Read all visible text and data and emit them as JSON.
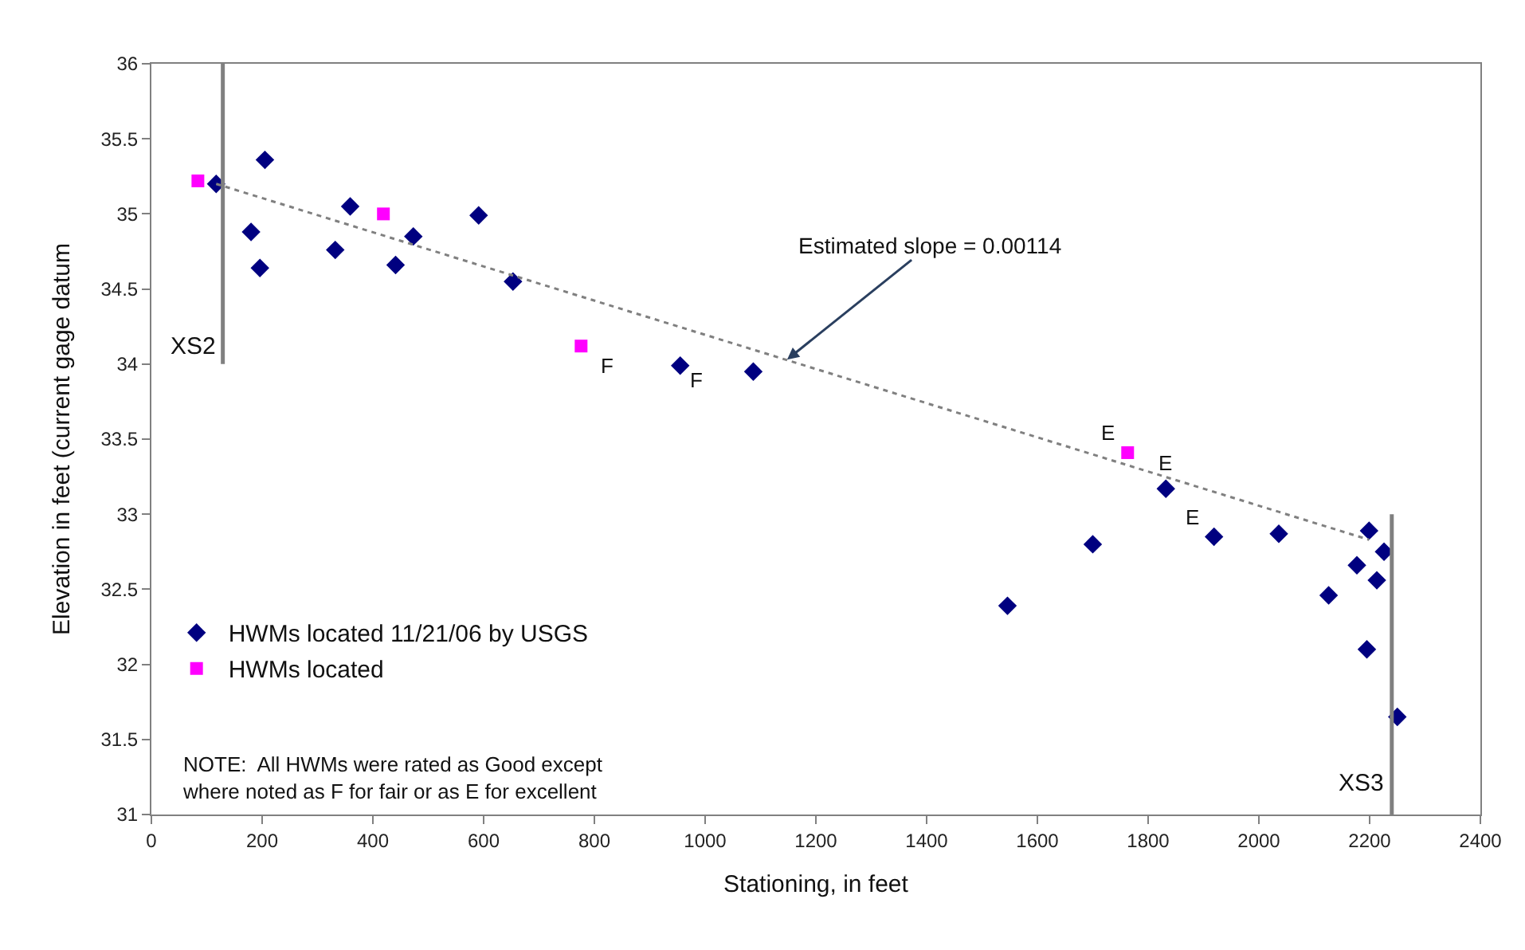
{
  "chart_data": {
    "type": "scatter",
    "xlabel": "Stationing, in feet",
    "ylabel": "Elevation in feet (current gage datum",
    "xlim": [
      0,
      2400
    ],
    "xticks": [
      0,
      200,
      400,
      600,
      800,
      1000,
      1200,
      1400,
      1600,
      1800,
      2000,
      2200,
      2400
    ],
    "ylim": [
      31,
      36
    ],
    "yticks": [
      31,
      31.5,
      32,
      32.5,
      33,
      33.5,
      34,
      34.5,
      35,
      35.5,
      36
    ],
    "legend": "bottom left",
    "series": [
      {
        "name": "HWMs located 11/21/06 by USGS",
        "color": "#000080",
        "marker": "diamond",
        "x": [
          117,
          205,
          180,
          196,
          332,
          359,
          441,
          473,
          591,
          653,
          955,
          1087,
          1546,
          1700,
          1832,
          1919,
          2036,
          2126,
          2177,
          2199,
          2213,
          2226,
          2195,
          2250
        ],
        "values": [
          35.2,
          35.36,
          34.88,
          34.64,
          34.76,
          35.05,
          34.66,
          34.85,
          34.99,
          34.55,
          33.99,
          33.95,
          32.39,
          32.8,
          33.17,
          32.85,
          32.87,
          32.46,
          32.66,
          32.89,
          32.56,
          32.75,
          32.1,
          31.65
        ]
      },
      {
        "name": "HWMs located",
        "color": "#ff00ff",
        "marker": "square",
        "x": [
          84,
          419,
          776,
          1763
        ],
        "values": [
          35.22,
          35.0,
          34.12,
          33.41
        ]
      },
      {
        "type": "line",
        "color": "#808080",
        "line_style": "dotted",
        "marker": "none",
        "x": [
          117,
          2199
        ],
        "values": [
          35.2,
          32.83
        ]
      },
      {
        "type": "line",
        "color": "#808080",
        "line_style": "solid",
        "marker": "none",
        "x": [
          129,
          129
        ],
        "values": [
          36,
          34
        ]
      },
      {
        "type": "line",
        "color": "#808080",
        "line_style": "solid",
        "marker": "none",
        "x": [
          2240,
          2240
        ],
        "values": [
          33,
          31
        ]
      }
    ],
    "annotations": [
      {
        "text": "Estimated slope = 0.00114",
        "x": 1148,
        "y": 34.03
      },
      {
        "text": "XS2",
        "x": 129,
        "y": 34.0
      },
      {
        "text": "XS3",
        "x": 2240,
        "y": 31.1
      },
      {
        "text": "F",
        "x": 776,
        "y": 34.12
      },
      {
        "text": "F",
        "x": 955,
        "y": 33.99
      },
      {
        "text": "E",
        "x": 1763,
        "y": 33.41
      },
      {
        "text": "E",
        "x": 1832,
        "y": 33.17
      },
      {
        "text": "E",
        "x": 1919,
        "y": 32.85
      },
      "NOTE:  All HWMs were rated as Good except\nwhere noted as F for fair or as E for excellent"
    ]
  }
}
